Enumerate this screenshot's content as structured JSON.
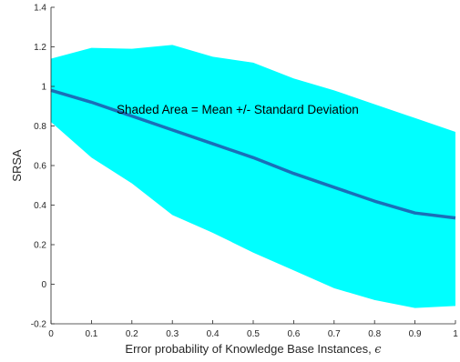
{
  "chart_data": {
    "type": "area",
    "x": [
      0,
      0.1,
      0.2,
      0.3,
      0.4,
      0.5,
      0.6,
      0.7,
      0.8,
      0.9,
      1.0
    ],
    "series": [
      {
        "values": [
          0.98,
          0.92,
          0.85,
          0.78,
          0.71,
          0.64,
          0.56,
          0.49,
          0.42,
          0.36,
          0.335
        ]
      }
    ],
    "band": {
      "upper": [
        1.14,
        1.195,
        1.19,
        1.21,
        1.15,
        1.12,
        1.04,
        0.98,
        0.91,
        0.84,
        0.77
      ],
      "lower": [
        0.82,
        0.64,
        0.51,
        0.35,
        0.26,
        0.16,
        0.07,
        -0.02,
        -0.08,
        -0.12,
        -0.11
      ]
    },
    "xlabel": "Error probability of Knowledge Base Instances, ",
    "xlabel_symbol": "ϵ",
    "ylabel": "SRSA",
    "xlim": [
      0,
      1
    ],
    "ylim": [
      -0.2,
      1.4
    ],
    "xticks": [
      "0",
      "0.1",
      "0.2",
      "0.3",
      "0.4",
      "0.5",
      "0.6",
      "0.7",
      "0.8",
      "0.9",
      "1"
    ],
    "xtick_values": [
      0,
      0.1,
      0.2,
      0.3,
      0.4,
      0.5,
      0.6,
      0.7,
      0.8,
      0.9,
      1.0
    ],
    "yticks": [
      "-0.2",
      "0",
      "0.2",
      "0.4",
      "0.6",
      "0.8",
      "1",
      "1.2",
      "1.4"
    ],
    "ytick_values": [
      -0.2,
      0,
      0.2,
      0.4,
      0.6,
      0.8,
      1.0,
      1.2,
      1.4
    ],
    "annotation": {
      "text": "Shaded Area = Mean +/- Standard Deviation",
      "x": 0.41,
      "y": 0.885
    },
    "grid": false,
    "colors": {
      "band": "#00ffff",
      "line": "#1a6fb8",
      "axis": "#262626"
    }
  }
}
